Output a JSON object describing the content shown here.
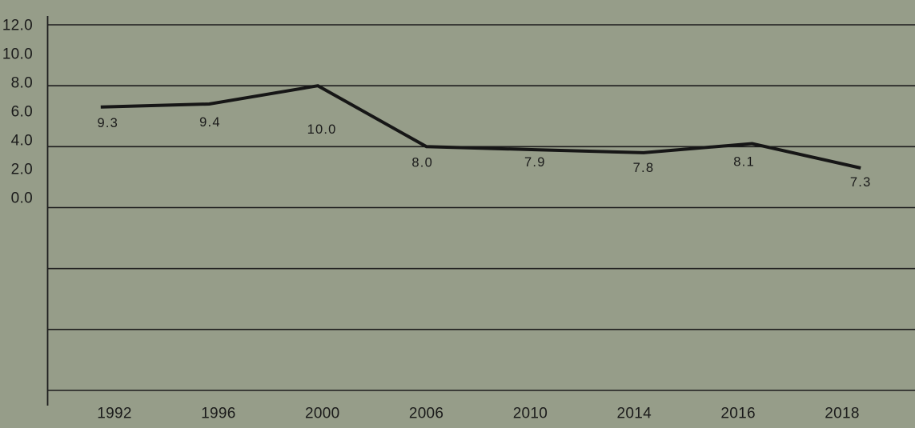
{
  "chart_data": {
    "type": "line",
    "title": "",
    "categories": [
      "1992",
      "1996",
      "2000",
      "2006",
      "2010",
      "2014",
      "2016",
      "2018"
    ],
    "series": [
      {
        "name": "",
        "values": [
          9.3,
          9.4,
          10.0,
          8.0,
          7.9,
          7.8,
          8.1,
          7.3
        ],
        "data_labels": [
          "9.3",
          "9.4",
          "10.0",
          "8.0",
          "7.9",
          "7.8",
          "8.1",
          "7.3"
        ]
      }
    ],
    "xlabel": "",
    "ylabel": "",
    "ylim": [
      0,
      12
    ],
    "y_tick_values": [
      12,
      10,
      8,
      6,
      4,
      2,
      0
    ],
    "y_tick_labels": [
      "12.0",
      "10.0",
      "8.0",
      "6.0",
      "4.0",
      "2.0",
      "0.0"
    ],
    "grid": "horizontal",
    "legend": "none",
    "layout_hints": {
      "data_label_position": "below-point",
      "gridlines_full_width": true
    },
    "colors": {
      "background": "#969D89",
      "line": "#161616",
      "grid": "#1D1D1D",
      "axis": "#1D1D1D",
      "text": "#1A1A1A"
    }
  }
}
